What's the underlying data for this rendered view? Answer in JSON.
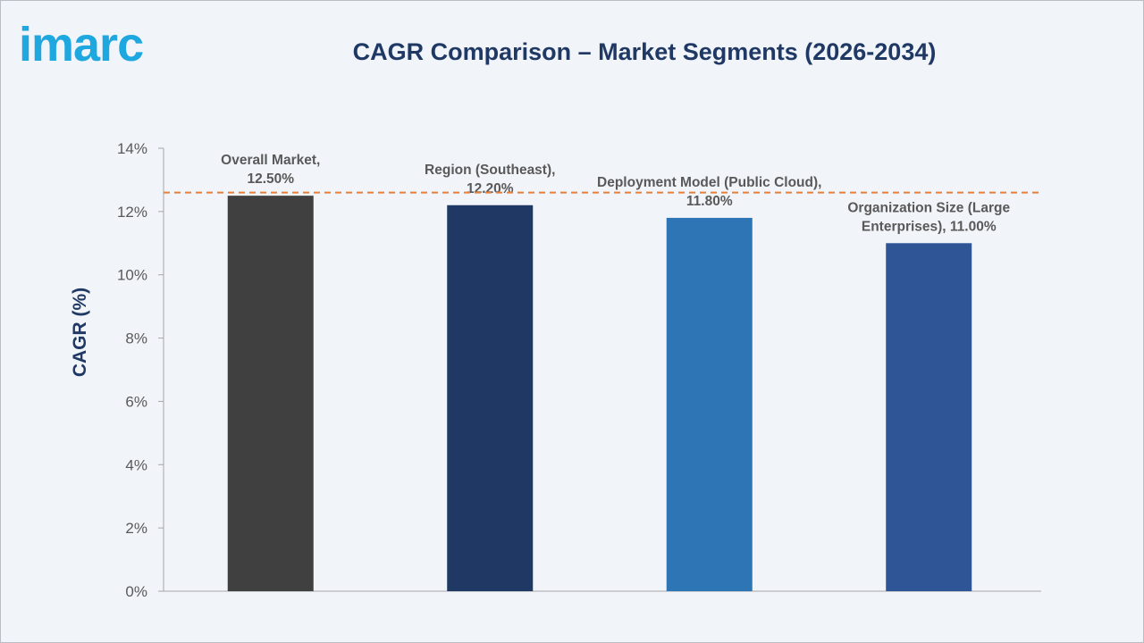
{
  "logo": {
    "text": "imarc",
    "color": "#1fa8e0"
  },
  "chart_data": {
    "type": "bar",
    "title": "CAGR Comparison – Market Segments (2026-2034)",
    "xlabel": "",
    "ylabel": "CAGR (%)",
    "ylim": [
      0,
      14
    ],
    "yticks": [
      0,
      2,
      4,
      6,
      8,
      10,
      12,
      14
    ],
    "ytick_labels": [
      "0%",
      "2%",
      "4%",
      "6%",
      "8%",
      "10%",
      "12%",
      "14%"
    ],
    "categories": [
      "Overall Market",
      "Region (Southeast)",
      "Deployment Model (Public Cloud)",
      "Organization Size (Large Enterprises)"
    ],
    "values": [
      12.5,
      12.2,
      11.8,
      11.0
    ],
    "data_labels": [
      [
        "Overall Market,",
        "12.50%"
      ],
      [
        "Region (Southeast),",
        "12.20%"
      ],
      [
        "Deployment Model (Public Cloud),",
        "11.80%"
      ],
      [
        "Organization Size (Large",
        "Enterprises), 11.00%"
      ]
    ],
    "colors": [
      "#404040",
      "#1f3864",
      "#2e75b6",
      "#2f5597"
    ],
    "reference_line": {
      "value": 12.6,
      "style": "dashed",
      "color": "#ed7d31"
    },
    "grid": false,
    "legend": "none"
  }
}
